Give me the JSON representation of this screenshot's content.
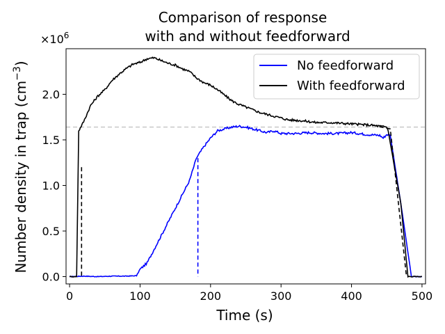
{
  "chart_data": {
    "type": "line",
    "title_line1": "Comparison of response",
    "title_line2": "with and without feedforward",
    "xlabel": "Time (s)",
    "ylabel_main": "Number density in trap (cm",
    "ylabel_sup": "−3",
    "ylabel_close": ")",
    "y_offset_base": "×10",
    "y_offset_exp": "6",
    "xlim": [
      -5,
      505
    ],
    "ylim": [
      -0.08,
      2.5
    ],
    "xticks": [
      0,
      100,
      200,
      300,
      400,
      500
    ],
    "xtick_labels": [
      "0",
      "100",
      "200",
      "300",
      "400",
      "500"
    ],
    "yticks": [
      0.0,
      0.5,
      1.0,
      1.5,
      2.0
    ],
    "ytick_labels": [
      "0.0",
      "0.5",
      "1.0",
      "1.5",
      "2.0"
    ],
    "setpoint": 1.64,
    "legend_position": "top-right",
    "series": [
      {
        "name": "No feedforward",
        "color": "#0000ff",
        "points": [
          [
            0,
            0.0
          ],
          [
            20,
            0.005
          ],
          [
            40,
            0.0
          ],
          [
            60,
            0.005
          ],
          [
            80,
            0.005
          ],
          [
            95,
            0.01
          ],
          [
            100,
            0.08
          ],
          [
            110,
            0.15
          ],
          [
            120,
            0.3
          ],
          [
            130,
            0.45
          ],
          [
            140,
            0.6
          ],
          [
            150,
            0.75
          ],
          [
            160,
            0.9
          ],
          [
            170,
            1.05
          ],
          [
            180,
            1.3
          ],
          [
            190,
            1.42
          ],
          [
            200,
            1.52
          ],
          [
            210,
            1.6
          ],
          [
            220,
            1.62
          ],
          [
            230,
            1.64
          ],
          [
            240,
            1.65
          ],
          [
            250,
            1.64
          ],
          [
            260,
            1.62
          ],
          [
            270,
            1.6
          ],
          [
            280,
            1.58
          ],
          [
            290,
            1.6
          ],
          [
            300,
            1.57
          ],
          [
            320,
            1.57
          ],
          [
            340,
            1.58
          ],
          [
            360,
            1.57
          ],
          [
            380,
            1.57
          ],
          [
            400,
            1.58
          ],
          [
            420,
            1.56
          ],
          [
            440,
            1.55
          ],
          [
            445,
            1.52
          ],
          [
            450,
            1.56
          ],
          [
            455,
            1.55
          ],
          [
            470,
            0.8
          ],
          [
            485,
            0.0
          ],
          [
            500,
            0.0
          ]
        ]
      },
      {
        "name": "With feedforward",
        "color": "#000000",
        "points": [
          [
            0,
            0.0
          ],
          [
            10,
            0.0
          ],
          [
            13,
            1.6
          ],
          [
            20,
            1.7
          ],
          [
            30,
            1.88
          ],
          [
            40,
            1.98
          ],
          [
            50,
            2.05
          ],
          [
            60,
            2.15
          ],
          [
            70,
            2.22
          ],
          [
            80,
            2.28
          ],
          [
            90,
            2.33
          ],
          [
            100,
            2.35
          ],
          [
            110,
            2.39
          ],
          [
            120,
            2.4
          ],
          [
            130,
            2.37
          ],
          [
            140,
            2.34
          ],
          [
            150,
            2.32
          ],
          [
            160,
            2.28
          ],
          [
            170,
            2.25
          ],
          [
            180,
            2.18
          ],
          [
            190,
            2.13
          ],
          [
            200,
            2.1
          ],
          [
            210,
            2.05
          ],
          [
            220,
            1.99
          ],
          [
            230,
            1.93
          ],
          [
            240,
            1.89
          ],
          [
            250,
            1.86
          ],
          [
            260,
            1.83
          ],
          [
            270,
            1.8
          ],
          [
            280,
            1.78
          ],
          [
            290,
            1.76
          ],
          [
            300,
            1.74
          ],
          [
            310,
            1.72
          ],
          [
            330,
            1.71
          ],
          [
            350,
            1.69
          ],
          [
            370,
            1.69
          ],
          [
            390,
            1.68
          ],
          [
            410,
            1.67
          ],
          [
            430,
            1.66
          ],
          [
            450,
            1.64
          ],
          [
            452,
            1.6
          ],
          [
            470,
            0.8
          ],
          [
            480,
            0.0
          ],
          [
            500,
            0.0
          ]
        ]
      }
    ],
    "dashed_segments": [
      {
        "color": "#0000ff",
        "points": [
          [
            182,
            1.3
          ],
          [
            182,
            0.0
          ]
        ]
      },
      {
        "color": "#000000",
        "points": [
          [
            17,
            1.2
          ],
          [
            17,
            0.0
          ]
        ]
      },
      {
        "color": "#000000",
        "points": [
          [
            430,
            1.66
          ],
          [
            455,
            1.62
          ],
          [
            478,
            0.0
          ]
        ]
      }
    ]
  }
}
